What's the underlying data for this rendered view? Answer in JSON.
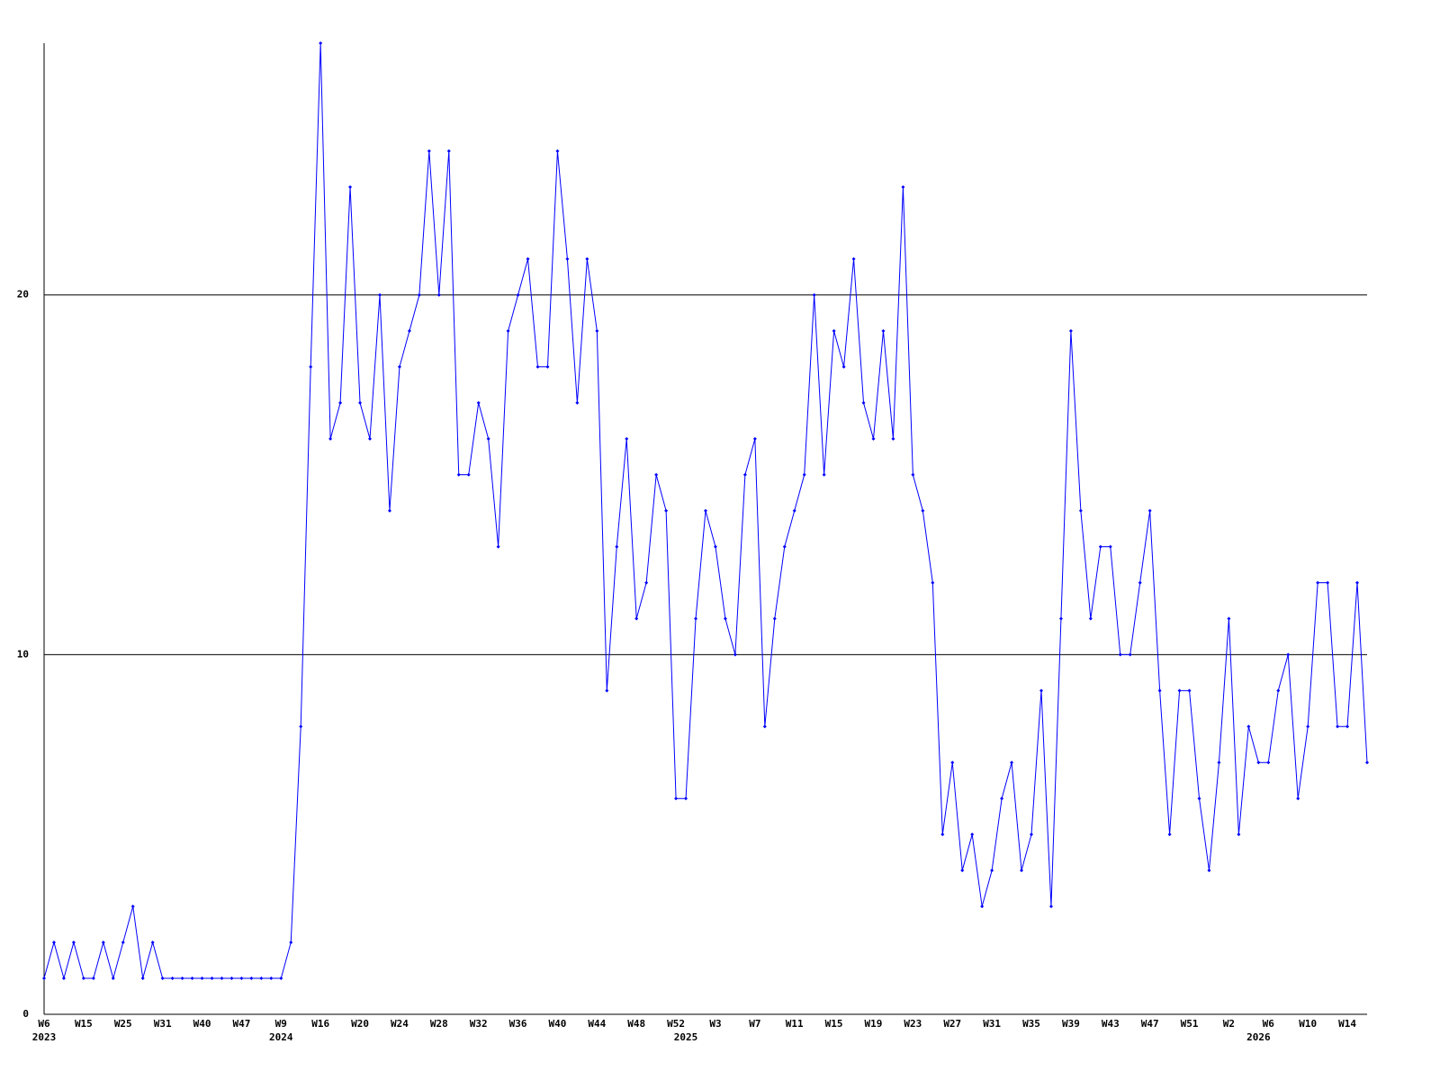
{
  "chart_data": {
    "type": "line",
    "categories": [
      "W6",
      null,
      null,
      null,
      "W15",
      null,
      null,
      null,
      "W25",
      null,
      null,
      null,
      "W31",
      null,
      null,
      null,
      "W40",
      null,
      null,
      null,
      "W47",
      null,
      null,
      null,
      "W9",
      null,
      null,
      null,
      "W16",
      null,
      null,
      null,
      "W20",
      null,
      null,
      null,
      "W24",
      null,
      null,
      null,
      "W28",
      null,
      null,
      null,
      "W32",
      null,
      null,
      null,
      "W36",
      null,
      null,
      null,
      "W40",
      null,
      null,
      null,
      "W44",
      null,
      null,
      null,
      "W48",
      null,
      null,
      null,
      "W52",
      null,
      null,
      null,
      "W3",
      null,
      null,
      null,
      "W7",
      null,
      null,
      null,
      "W11",
      null,
      null,
      null,
      "W15",
      null,
      null,
      null,
      "W19",
      null,
      null,
      null,
      "W23",
      null,
      null,
      null,
      "W27",
      null,
      null,
      null,
      "W31",
      null,
      null,
      null,
      "W35",
      null,
      null,
      null,
      "W39",
      null,
      null,
      null,
      "W43",
      null,
      null,
      null,
      "W47",
      null,
      null,
      null,
      "W51",
      null,
      null,
      null,
      "W2",
      null,
      null,
      null,
      "W6",
      null,
      null,
      null,
      "W10",
      null,
      null,
      null,
      "W14",
      null,
      null
    ],
    "years": [
      "2023",
      null,
      null,
      null,
      null,
      null,
      null,
      null,
      null,
      null,
      null,
      null,
      null,
      null,
      null,
      null,
      null,
      null,
      null,
      null,
      null,
      null,
      null,
      null,
      "2024",
      null,
      null,
      null,
      null,
      null,
      null,
      null,
      null,
      null,
      null,
      null,
      null,
      null,
      null,
      null,
      null,
      null,
      null,
      null,
      null,
      null,
      null,
      null,
      null,
      null,
      null,
      null,
      null,
      null,
      null,
      null,
      null,
      null,
      null,
      null,
      null,
      null,
      null,
      null,
      null,
      "2025",
      null,
      null,
      null,
      null,
      null,
      null,
      null,
      null,
      null,
      null,
      null,
      null,
      null,
      null,
      null,
      null,
      null,
      null,
      null,
      null,
      null,
      null,
      null,
      null,
      null,
      null,
      null,
      null,
      null,
      null,
      null,
      null,
      null,
      null,
      null,
      null,
      null,
      null,
      null,
      null,
      null,
      null,
      null,
      null,
      null,
      null,
      null,
      null,
      null,
      null,
      null,
      null,
      null,
      null,
      null,
      null,
      null,
      "2026",
      null,
      null,
      null,
      null,
      null,
      null,
      null,
      null,
      null,
      null,
      null,
      null,
      null,
      null,
      null,
      null
    ],
    "series": [
      {
        "color": "#0000ff",
        "values": [
          1,
          2,
          1,
          2,
          1,
          1,
          2,
          1,
          2,
          3,
          1,
          2,
          1,
          1,
          1,
          1,
          1,
          1,
          1,
          1,
          1,
          1,
          1,
          1,
          1,
          2,
          8,
          18,
          27,
          16,
          17,
          23,
          17,
          16,
          20,
          14,
          18,
          19,
          20,
          24,
          20,
          24,
          15,
          15,
          17,
          16,
          13,
          19,
          20,
          21,
          18,
          18,
          24,
          21,
          17,
          21,
          19,
          9,
          13,
          16,
          11,
          12,
          15,
          14,
          6,
          6,
          11,
          14,
          13,
          11,
          10,
          15,
          16,
          8,
          11,
          13,
          14,
          15,
          20,
          15,
          19,
          18,
          21,
          17,
          16,
          19,
          16,
          23,
          15,
          14,
          12,
          5,
          7,
          4,
          5,
          3,
          4,
          6,
          7,
          4,
          5,
          9,
          3,
          11,
          19,
          14,
          11,
          13,
          13,
          10,
          10,
          12,
          14,
          9,
          5,
          9,
          9,
          6,
          4,
          7,
          11,
          5,
          8,
          7,
          7,
          9,
          10,
          6,
          8,
          12,
          12,
          8,
          8,
          12,
          7
        ]
      }
    ],
    "ylim": [
      0,
      27
    ],
    "yticks": [
      0,
      10,
      20
    ],
    "grid": true
  }
}
